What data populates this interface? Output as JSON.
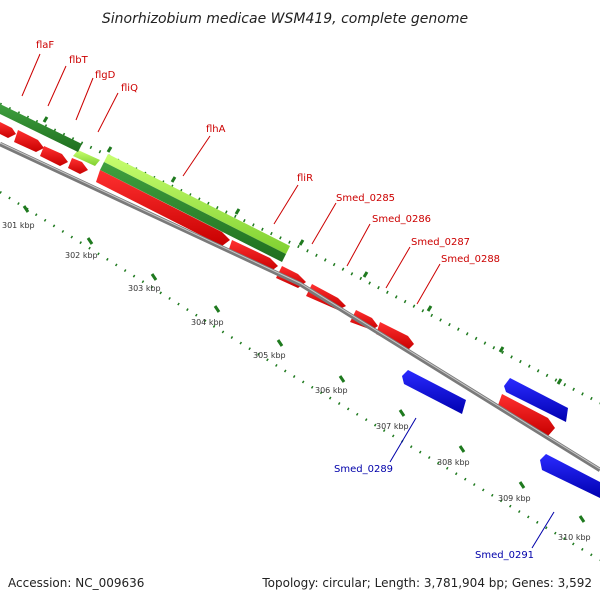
{
  "title": "Sinorhizobium medicae WSM419, complete genome",
  "footer": {
    "accession": "Accession: NC_009636",
    "topology": "Topology: circular; Length: 3,781,904 bp; Genes: 3,592"
  },
  "colors": {
    "forward_gene": "#ff0000",
    "reverse_gene": "#0000ff",
    "forward_label": "#cc0000",
    "reverse_label": "#0000aa",
    "operon_dark": "#2f8f2f",
    "operon_light": "#99ee44",
    "backbone": "#8a8a8a",
    "ticks": "#1f7a1f"
  },
  "kbp_labels": [
    "301 kbp",
    "302 kbp",
    "303 kbp",
    "304 kbp",
    "305 kbp",
    "306 kbp",
    "307 kbp",
    "308 kbp",
    "309 kbp",
    "310 kbp"
  ],
  "genes": [
    {
      "label": "flaF",
      "strand": "+"
    },
    {
      "label": "flbT",
      "strand": "+"
    },
    {
      "label": "flgD",
      "strand": "+"
    },
    {
      "label": "fliQ",
      "strand": "+"
    },
    {
      "label": "flhA",
      "strand": "+"
    },
    {
      "label": "fliR",
      "strand": "+"
    },
    {
      "label": "Smed_0285",
      "strand": "+"
    },
    {
      "label": "Smed_0286",
      "strand": "+"
    },
    {
      "label": "Smed_0287",
      "strand": "+"
    },
    {
      "label": "Smed_0288",
      "strand": "+"
    },
    {
      "label": "Smed_0289",
      "strand": "-"
    },
    {
      "label": "Smed_0291",
      "strand": "-"
    }
  ]
}
